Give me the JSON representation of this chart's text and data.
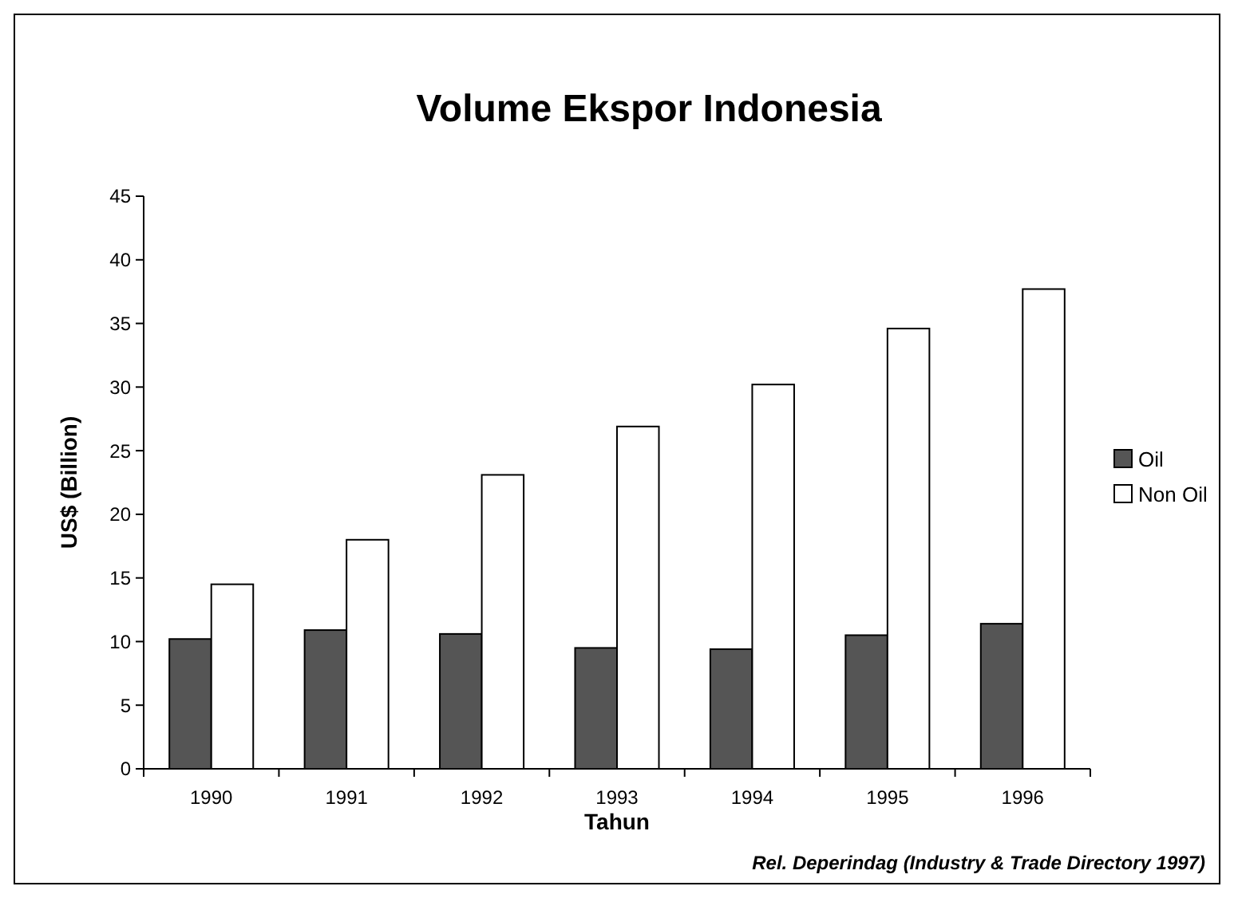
{
  "chart_data": {
    "type": "bar",
    "title": "Volume Ekspor Indonesia",
    "xlabel": "Tahun",
    "ylabel": "US$ (Billion)",
    "categories": [
      "1990",
      "1991",
      "1992",
      "1993",
      "1994",
      "1995",
      "1996"
    ],
    "series": [
      {
        "name": "Oil",
        "color": "#555555",
        "values": [
          10.2,
          10.9,
          10.6,
          9.5,
          9.4,
          10.5,
          11.4
        ]
      },
      {
        "name": "Non Oil",
        "color": "#ffffff",
        "values": [
          14.5,
          18.0,
          23.1,
          26.9,
          30.2,
          34.6,
          37.7
        ]
      }
    ],
    "ylim": [
      0,
      45
    ],
    "yticks": [
      0,
      5,
      10,
      15,
      20,
      25,
      30,
      35,
      40,
      45
    ],
    "grid": false,
    "legend": "right",
    "annotations": [
      "Rel. Deperindag (Industry & Trade Directory 1997)"
    ]
  }
}
